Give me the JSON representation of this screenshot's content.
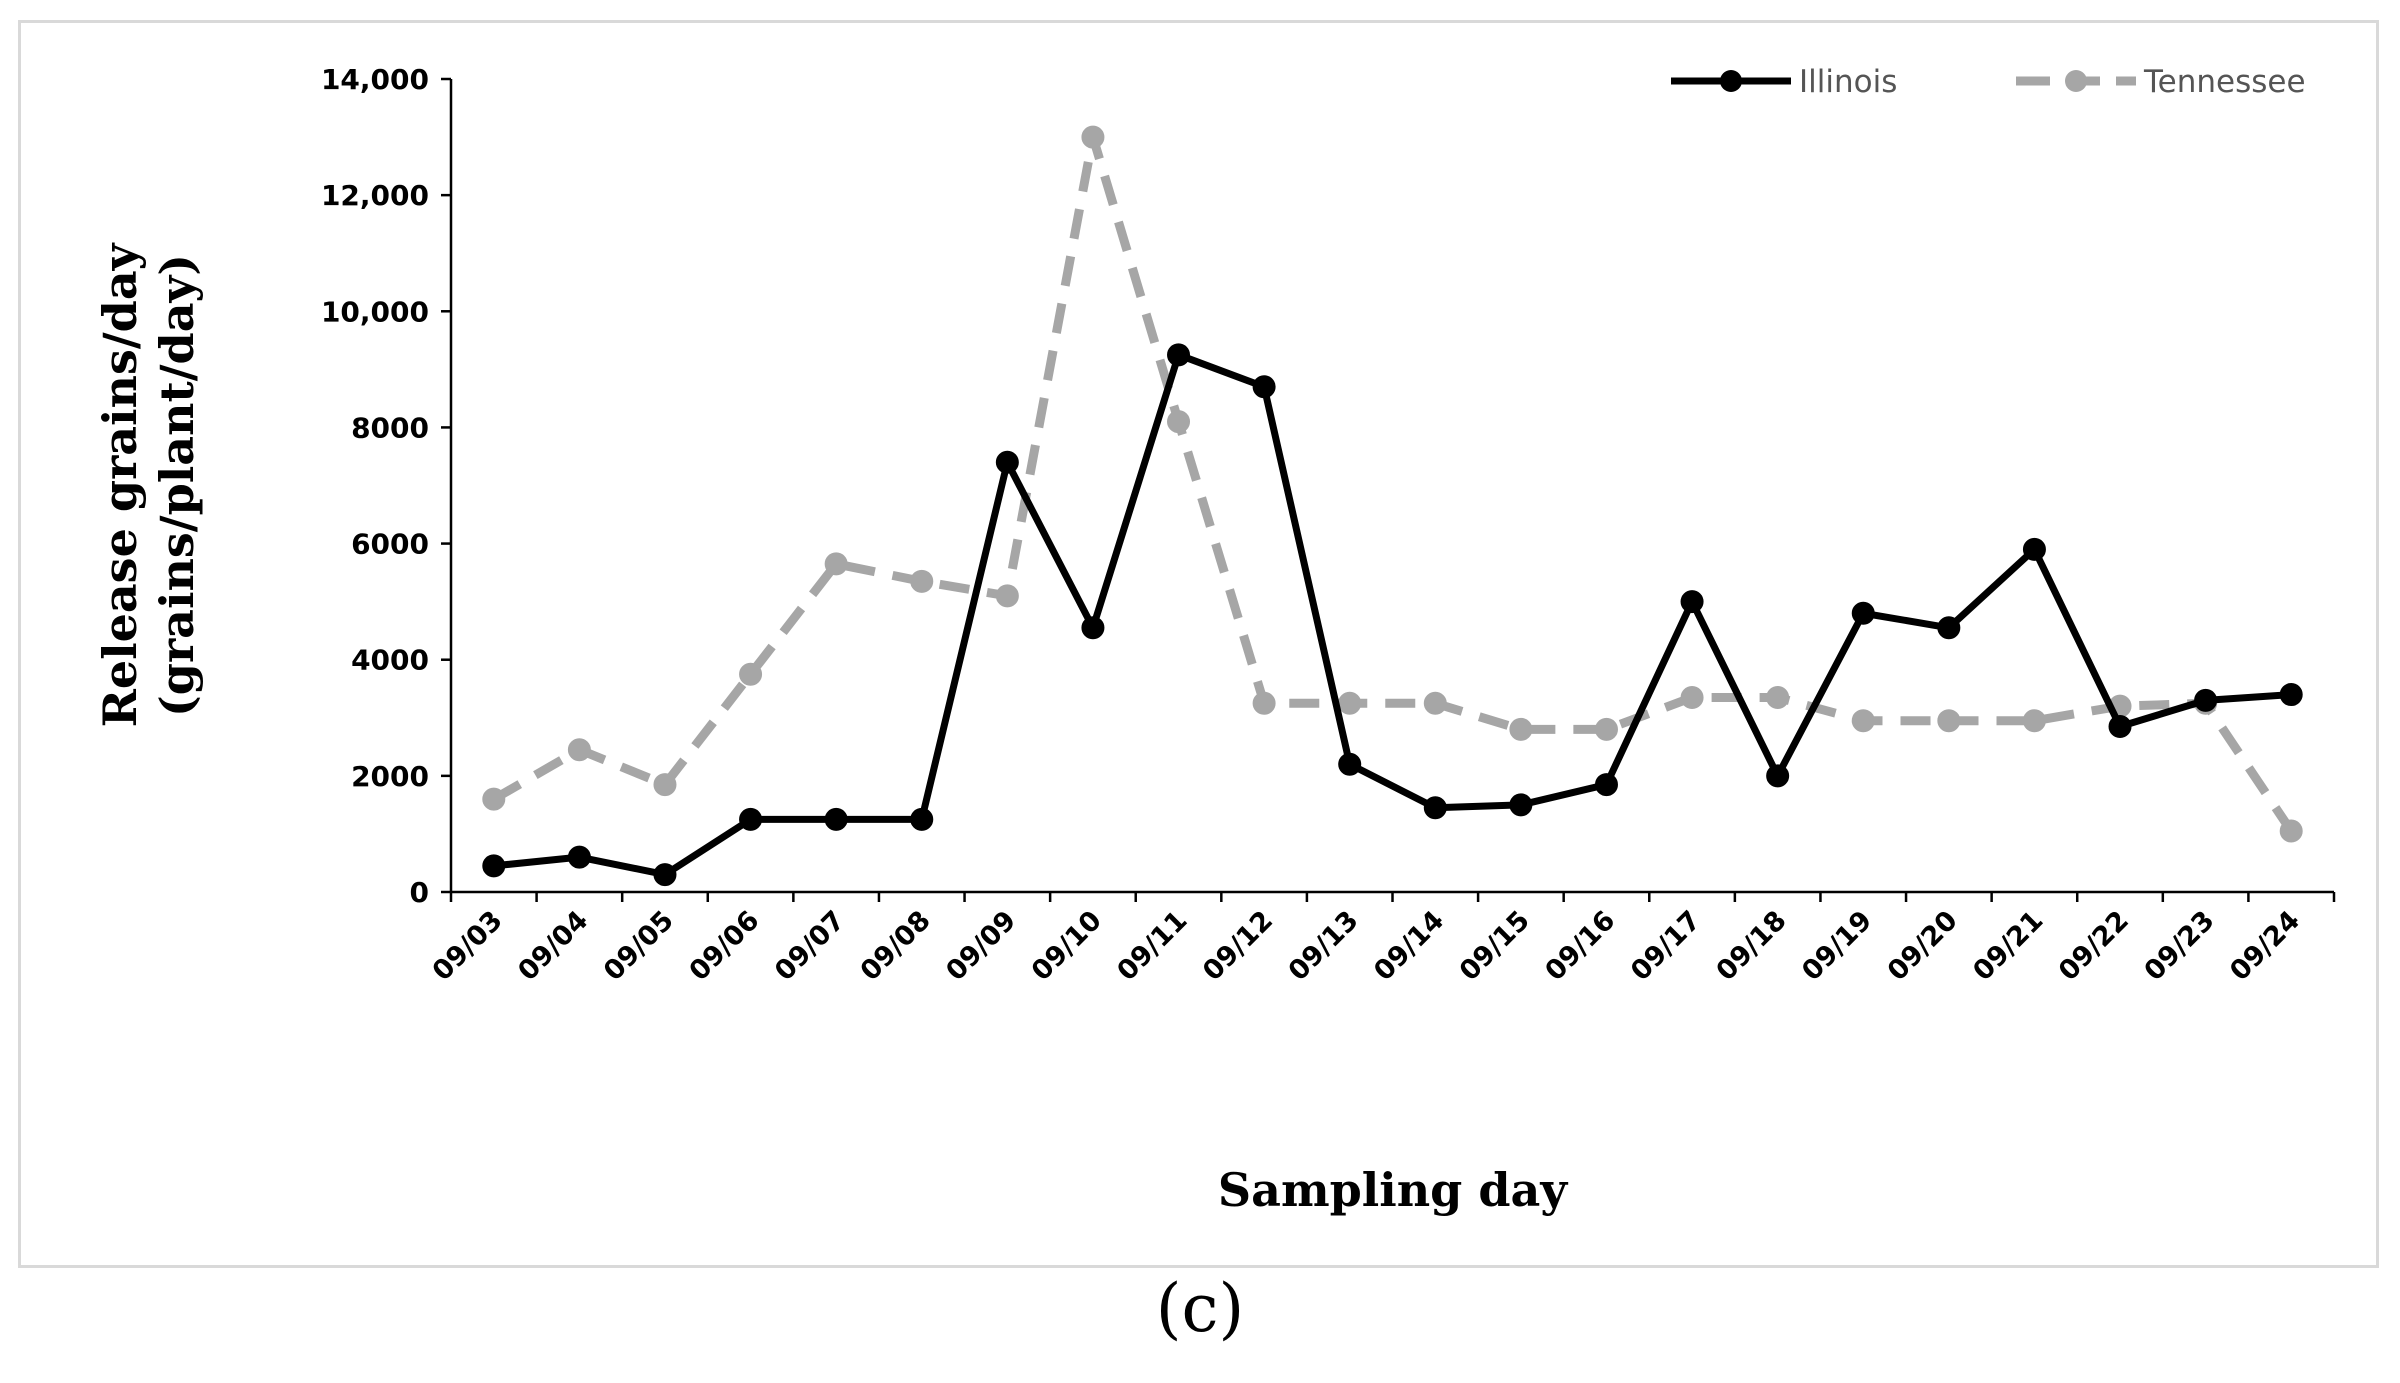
{
  "chart_data": {
    "type": "line",
    "title": "",
    "xlabel": "Sampling day",
    "ylabel": [
      "Release grains/day",
      "(grains/plant/day)"
    ],
    "categories": [
      "09/03",
      "09/04",
      "09/05",
      "09/06",
      "09/07",
      "09/08",
      "09/09",
      "09/10",
      "09/11",
      "09/12",
      "09/13",
      "09/14",
      "09/15",
      "09/16",
      "09/17",
      "09/18",
      "09/19",
      "09/20",
      "09/21",
      "09/22",
      "09/23",
      "09/24"
    ],
    "ylim": [
      0,
      14000
    ],
    "yticks": [
      {
        "value": 0,
        "label": "0"
      },
      {
        "value": 2000,
        "label": "2000"
      },
      {
        "value": 4000,
        "label": "4000"
      },
      {
        "value": 6000,
        "label": "6000"
      },
      {
        "value": 8000,
        "label": "8000"
      },
      {
        "value": 10000,
        "label": "10,000"
      },
      {
        "value": 12000,
        "label": "12,000"
      },
      {
        "value": 14000,
        "label": "14,000"
      }
    ],
    "grid": false,
    "legend_position": "top-right",
    "series": [
      {
        "name": "Illinois",
        "color": "#000000",
        "style": "solid",
        "values": [
          450,
          600,
          300,
          1250,
          1250,
          1250,
          7400,
          4550,
          9250,
          8700,
          2200,
          1450,
          1500,
          1850,
          5000,
          2000,
          4800,
          4550,
          5900,
          2850,
          3300,
          3400
        ]
      },
      {
        "name": "Tennessee",
        "color": "#a6a6a6",
        "style": "dashed",
        "values": [
          1600,
          2450,
          1850,
          3750,
          5650,
          5350,
          5100,
          13000,
          8100,
          3250,
          3250,
          3250,
          2800,
          2800,
          3350,
          3350,
          2950,
          2950,
          2950,
          3200,
          3250,
          1050
        ]
      }
    ]
  },
  "panel_label": "(c)"
}
